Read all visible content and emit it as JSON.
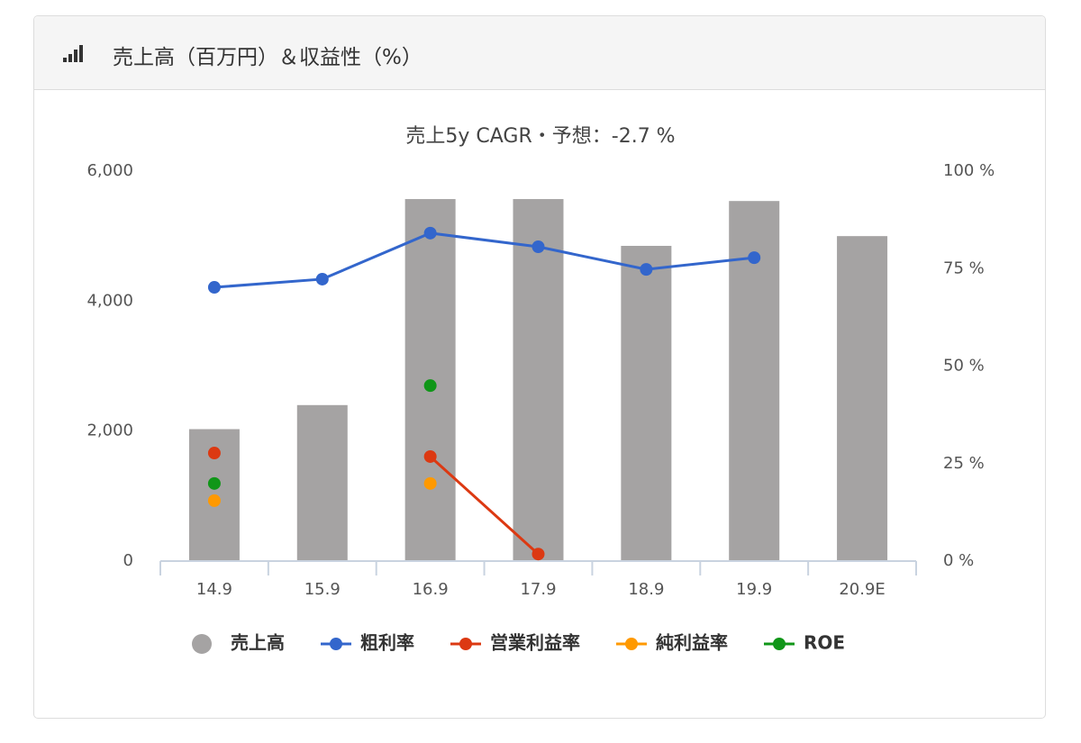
{
  "header": {
    "title": "売上高（百万円）＆収益性（%）"
  },
  "chart_data": {
    "type": "bar",
    "title": "売上5y CAGR・予想：-2.7 %",
    "categories": [
      "14.9",
      "15.9",
      "16.9",
      "17.9",
      "18.9",
      "19.9",
      "20.9E"
    ],
    "series": [
      {
        "name": "売上高",
        "type": "bar",
        "color": "#a5a3a3",
        "values": [
          2030,
          2400,
          5570,
          5570,
          4850,
          5540,
          5000
        ]
      },
      {
        "name": "粗利率",
        "type": "line",
        "axis": "y2",
        "color": "#3366cc",
        "values": [
          70.2,
          72.3,
          84.1,
          80.6,
          74.8,
          77.8,
          null
        ]
      },
      {
        "name": "営業利益率",
        "type": "line",
        "axis": "y2",
        "color": "#dc3912",
        "values": [
          27.7,
          null,
          26.8,
          1.8,
          null,
          null,
          null
        ]
      },
      {
        "name": "純利益率",
        "type": "line",
        "axis": "y2",
        "color": "#ff9900",
        "values": [
          15.5,
          null,
          19.9,
          null,
          null,
          null,
          null
        ]
      },
      {
        "name": "ROE",
        "type": "line",
        "axis": "y2",
        "color": "#109618",
        "values": [
          19.9,
          null,
          45.0,
          null,
          null,
          null,
          null
        ]
      }
    ],
    "ylim": [
      0,
      6000
    ],
    "yticks": [
      0,
      {
        "value": 2000,
        "label": "2,000"
      },
      {
        "value": 4000,
        "label": "4,000"
      },
      {
        "value": 6000,
        "label": "6,000"
      }
    ],
    "y2lim": [
      0,
      100
    ],
    "y2ticks": [
      {
        "value": 0,
        "label": "0 %"
      },
      {
        "value": 25,
        "label": "25 %"
      },
      {
        "value": 50,
        "label": "50 %"
      },
      {
        "value": 75,
        "label": "75 %"
      },
      {
        "value": 100,
        "label": "100 %"
      }
    ],
    "grid": false,
    "legend": "bottom"
  }
}
